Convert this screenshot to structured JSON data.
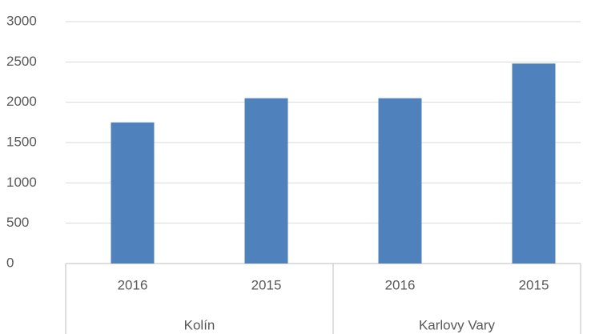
{
  "chart_data": {
    "type": "bar",
    "groups": [
      {
        "name": "Kolín",
        "categories": [
          "2016",
          "2015"
        ]
      },
      {
        "name": "Karlovy Vary",
        "categories": [
          "2016",
          "2015"
        ]
      }
    ],
    "values": [
      1750,
      2050,
      2050,
      2480
    ],
    "color": "#4f81bd",
    "ylim": [
      0,
      3000
    ],
    "yticks": [
      0,
      500,
      1000,
      1500,
      2000,
      2500,
      3000
    ],
    "grid": true
  }
}
